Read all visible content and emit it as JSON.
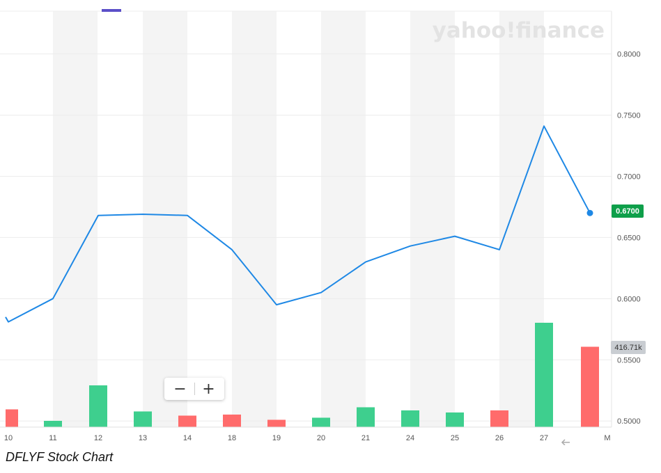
{
  "watermark": "yahoo!finance",
  "caption": "DFLYF Stock Chart",
  "zoom": {
    "minus": "−",
    "plus": "+"
  },
  "badges": {
    "last_price": "0.6700",
    "volume": "416.71k"
  },
  "colors": {
    "line": "#1e88e5",
    "volume_up": "#3ecf8e",
    "volume_down": "#ff6b6b",
    "price_badge": "#0e9f4a",
    "band": "#f4f4f4"
  },
  "chart_data": {
    "type": "line",
    "categories": [
      "10",
      "11",
      "12",
      "13",
      "14",
      "18",
      "19",
      "20",
      "21",
      "24",
      "25",
      "26",
      "27",
      "M"
    ],
    "series": [
      {
        "values": [
          0.581,
          0.6,
          0.668,
          0.669,
          0.668,
          0.64,
          0.595,
          0.605,
          0.63,
          0.643,
          0.651,
          0.64,
          0.741,
          0.67
        ]
      }
    ],
    "volume_bars": [
      {
        "x": "10",
        "direction": "down",
        "relative_height": 0.17
      },
      {
        "x": "11",
        "direction": "up",
        "relative_height": 0.06
      },
      {
        "x": "12",
        "direction": "up",
        "relative_height": 0.4
      },
      {
        "x": "13",
        "direction": "up",
        "relative_height": 0.15
      },
      {
        "x": "14",
        "direction": "down",
        "relative_height": 0.11
      },
      {
        "x": "18",
        "direction": "down",
        "relative_height": 0.12
      },
      {
        "x": "19",
        "direction": "down",
        "relative_height": 0.07
      },
      {
        "x": "20",
        "direction": "up",
        "relative_height": 0.09
      },
      {
        "x": "21",
        "direction": "up",
        "relative_height": 0.19
      },
      {
        "x": "24",
        "direction": "up",
        "relative_height": 0.16
      },
      {
        "x": "25",
        "direction": "up",
        "relative_height": 0.14
      },
      {
        "x": "26",
        "direction": "down",
        "relative_height": 0.16
      },
      {
        "x": "27",
        "direction": "up",
        "relative_height": 1.0
      },
      {
        "x": "M",
        "direction": "down",
        "relative_height": 0.77
      }
    ],
    "y_ticks": [
      "0.8000",
      "0.7500",
      "0.7000",
      "0.6500",
      "0.6000",
      "0.5500",
      "0.5000"
    ],
    "y_tick_values": [
      0.8,
      0.75,
      0.7,
      0.65,
      0.6,
      0.55,
      0.5
    ],
    "ylim": [
      0.495,
      0.835
    ],
    "grid": true,
    "last_point": 0.67
  }
}
